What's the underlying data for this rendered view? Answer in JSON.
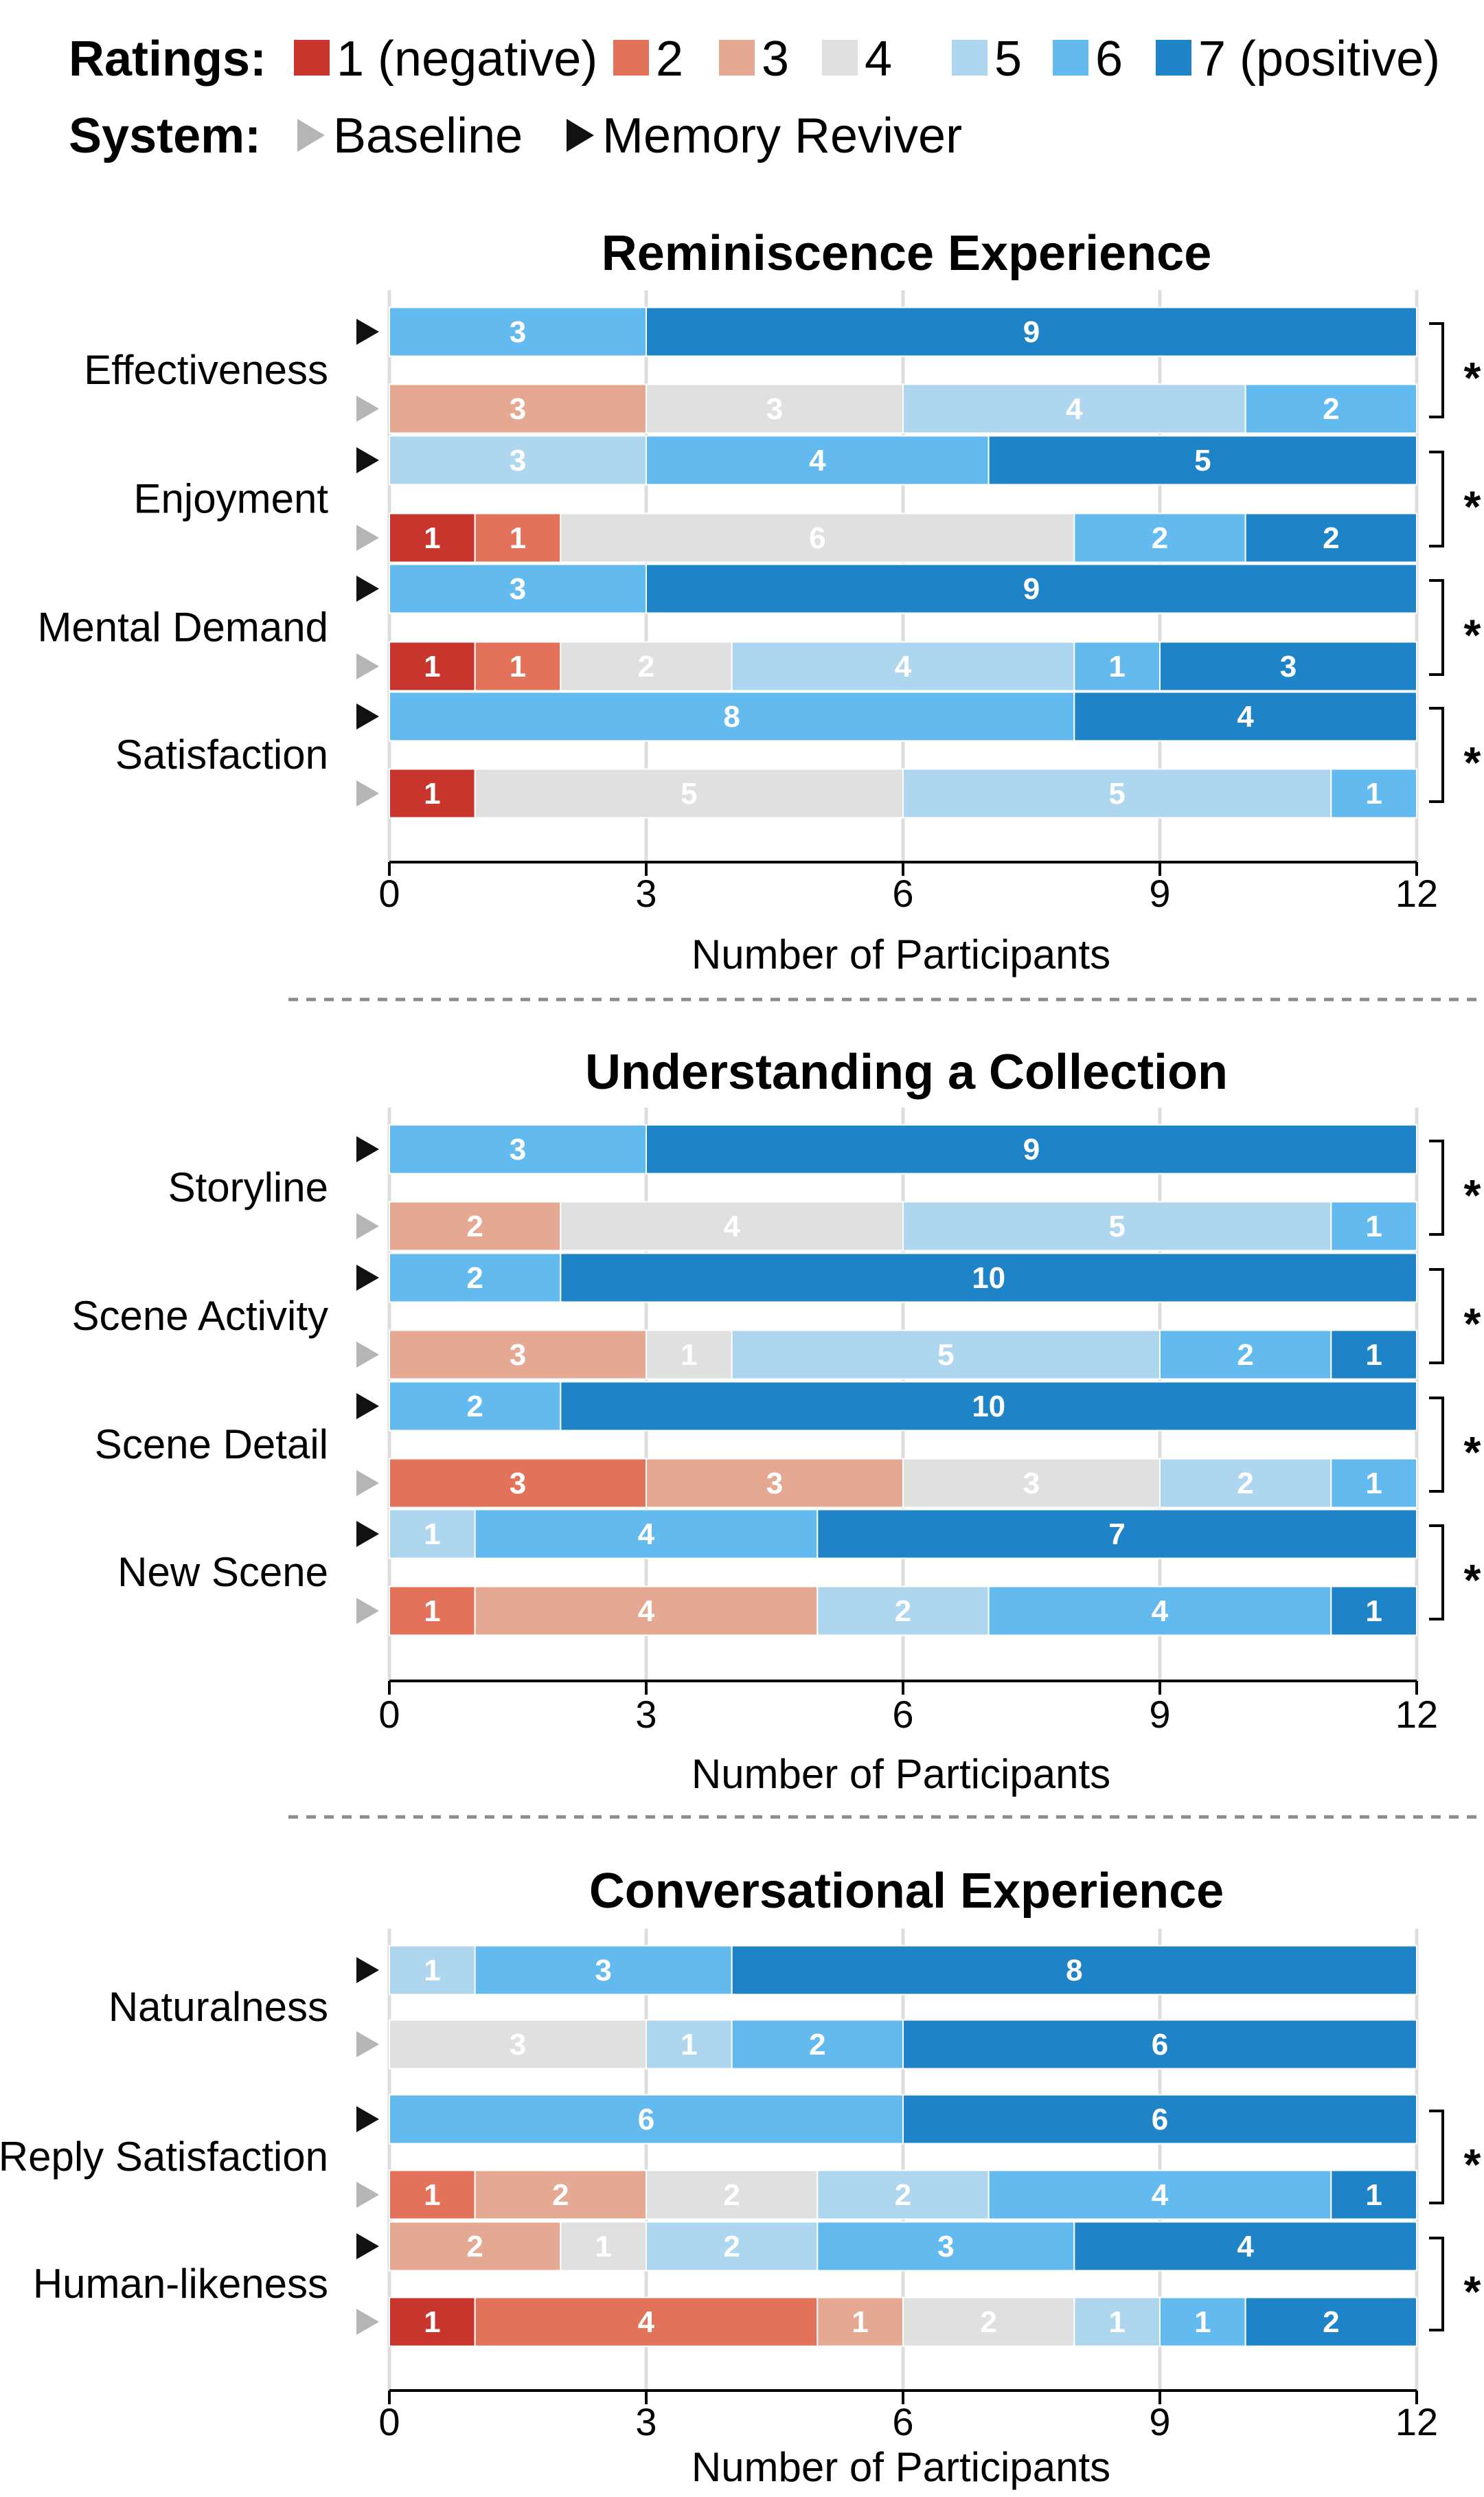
{
  "legend": {
    "ratings_label": "Ratings:",
    "system_label": "System:",
    "ratings": [
      {
        "name": "1 (negative)",
        "color": "#c8352d"
      },
      {
        "name": "2",
        "color": "#e2735a"
      },
      {
        "name": "3",
        "color": "#e4a893"
      },
      {
        "name": "4",
        "color": "#e0e0e0"
      },
      {
        "name": "5",
        "color": "#aed6ef"
      },
      {
        "name": "6",
        "color": "#62baee"
      },
      {
        "name": "7 (positive)",
        "color": "#1f84c7"
      }
    ],
    "systems": [
      {
        "name": "Baseline",
        "color": "#b5b5b5"
      },
      {
        "name": "Memory Reviver",
        "color": "#111111"
      }
    ]
  },
  "chart_data": [
    {
      "type": "bar",
      "stacked": true,
      "orientation": "horizontal",
      "title": "Reminiscence Experience",
      "xlabel": "Number of Participants",
      "xlim": [
        0,
        12
      ],
      "xticks": [
        0,
        3,
        6,
        9,
        12
      ],
      "grid": true,
      "items": [
        {
          "label": "Effectiveness",
          "significant": true,
          "sig_label": "*",
          "memory_reviver": [
            0,
            0,
            0,
            0,
            0,
            3,
            9
          ],
          "baseline": [
            0,
            0,
            3,
            3,
            4,
            2,
            0
          ]
        },
        {
          "label": "Enjoyment",
          "significant": true,
          "sig_label": "*",
          "memory_reviver": [
            0,
            0,
            0,
            0,
            3,
            4,
            5
          ],
          "baseline": [
            1,
            1,
            0,
            6,
            0,
            2,
            2
          ]
        },
        {
          "label": "Mental Demand",
          "significant": true,
          "sig_label": "*",
          "memory_reviver": [
            0,
            0,
            0,
            0,
            0,
            3,
            9
          ],
          "baseline": [
            1,
            1,
            0,
            2,
            4,
            1,
            3
          ]
        },
        {
          "label": "Satisfaction",
          "significant": true,
          "sig_label": "*",
          "memory_reviver": [
            0,
            0,
            0,
            0,
            0,
            8,
            4
          ],
          "baseline": [
            1,
            0,
            0,
            5,
            5,
            1,
            0
          ]
        }
      ]
    },
    {
      "type": "bar",
      "stacked": true,
      "orientation": "horizontal",
      "title": "Understanding a Collection",
      "xlabel": "Number of Participants",
      "xlim": [
        0,
        12
      ],
      "xticks": [
        0,
        3,
        6,
        9,
        12
      ],
      "grid": true,
      "items": [
        {
          "label": "Storyline",
          "significant": true,
          "sig_label": "*",
          "memory_reviver": [
            0,
            0,
            0,
            0,
            0,
            3,
            9
          ],
          "baseline": [
            0,
            0,
            2,
            4,
            5,
            1,
            0
          ]
        },
        {
          "label": "Scene Activity",
          "significant": true,
          "sig_label": "*",
          "memory_reviver": [
            0,
            0,
            0,
            0,
            0,
            2,
            10
          ],
          "baseline": [
            0,
            0,
            3,
            1,
            5,
            2,
            1
          ]
        },
        {
          "label": "Scene Detail",
          "significant": true,
          "sig_label": "*",
          "memory_reviver": [
            0,
            0,
            0,
            0,
            0,
            2,
            10
          ],
          "baseline": [
            0,
            3,
            3,
            3,
            2,
            1,
            0
          ]
        },
        {
          "label": "New Scene",
          "significant": true,
          "sig_label": "*",
          "memory_reviver": [
            0,
            0,
            0,
            0,
            1,
            4,
            7
          ],
          "baseline": [
            0,
            1,
            4,
            0,
            2,
            4,
            1
          ]
        }
      ]
    },
    {
      "type": "bar",
      "stacked": true,
      "orientation": "horizontal",
      "title": "Conversational Experience",
      "xlabel": "Number of Participants",
      "xlim": [
        0,
        12
      ],
      "xticks": [
        0,
        3,
        6,
        9,
        12
      ],
      "grid": true,
      "items": [
        {
          "label": "Naturalness",
          "significant": false,
          "sig_label": "",
          "memory_reviver": [
            0,
            0,
            0,
            0,
            1,
            3,
            8
          ],
          "baseline": [
            0,
            0,
            0,
            3,
            1,
            2,
            6
          ]
        },
        {
          "label": "Reply Satisfaction",
          "significant": true,
          "sig_label": "*",
          "memory_reviver": [
            0,
            0,
            0,
            0,
            0,
            6,
            6
          ],
          "baseline": [
            0,
            1,
            2,
            2,
            2,
            4,
            1
          ]
        },
        {
          "label": "Human-likeness",
          "significant": true,
          "sig_label": "*",
          "memory_reviver": [
            0,
            0,
            2,
            1,
            2,
            3,
            4
          ],
          "baseline": [
            1,
            4,
            1,
            2,
            1,
            1,
            2
          ]
        }
      ]
    }
  ]
}
